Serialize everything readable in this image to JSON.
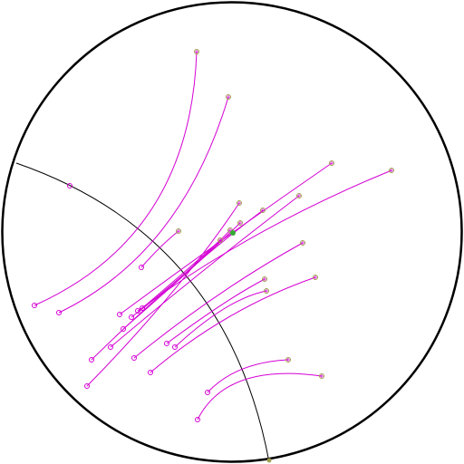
{
  "colors": {
    "background": "#ffffff",
    "boundary": "#000000",
    "reference_arc": "#000000",
    "track": "#d400d4",
    "endpoint_outer": "#a0a050",
    "start_marker": "#d400d4",
    "highlight_point": "#33aa33"
  },
  "icons": {
    "track_start": "small-open-circle-icon",
    "track_end": "small-olive-ring-icon",
    "highlight": "green-dot-icon"
  },
  "counts": {
    "tracks": 17
  }
}
